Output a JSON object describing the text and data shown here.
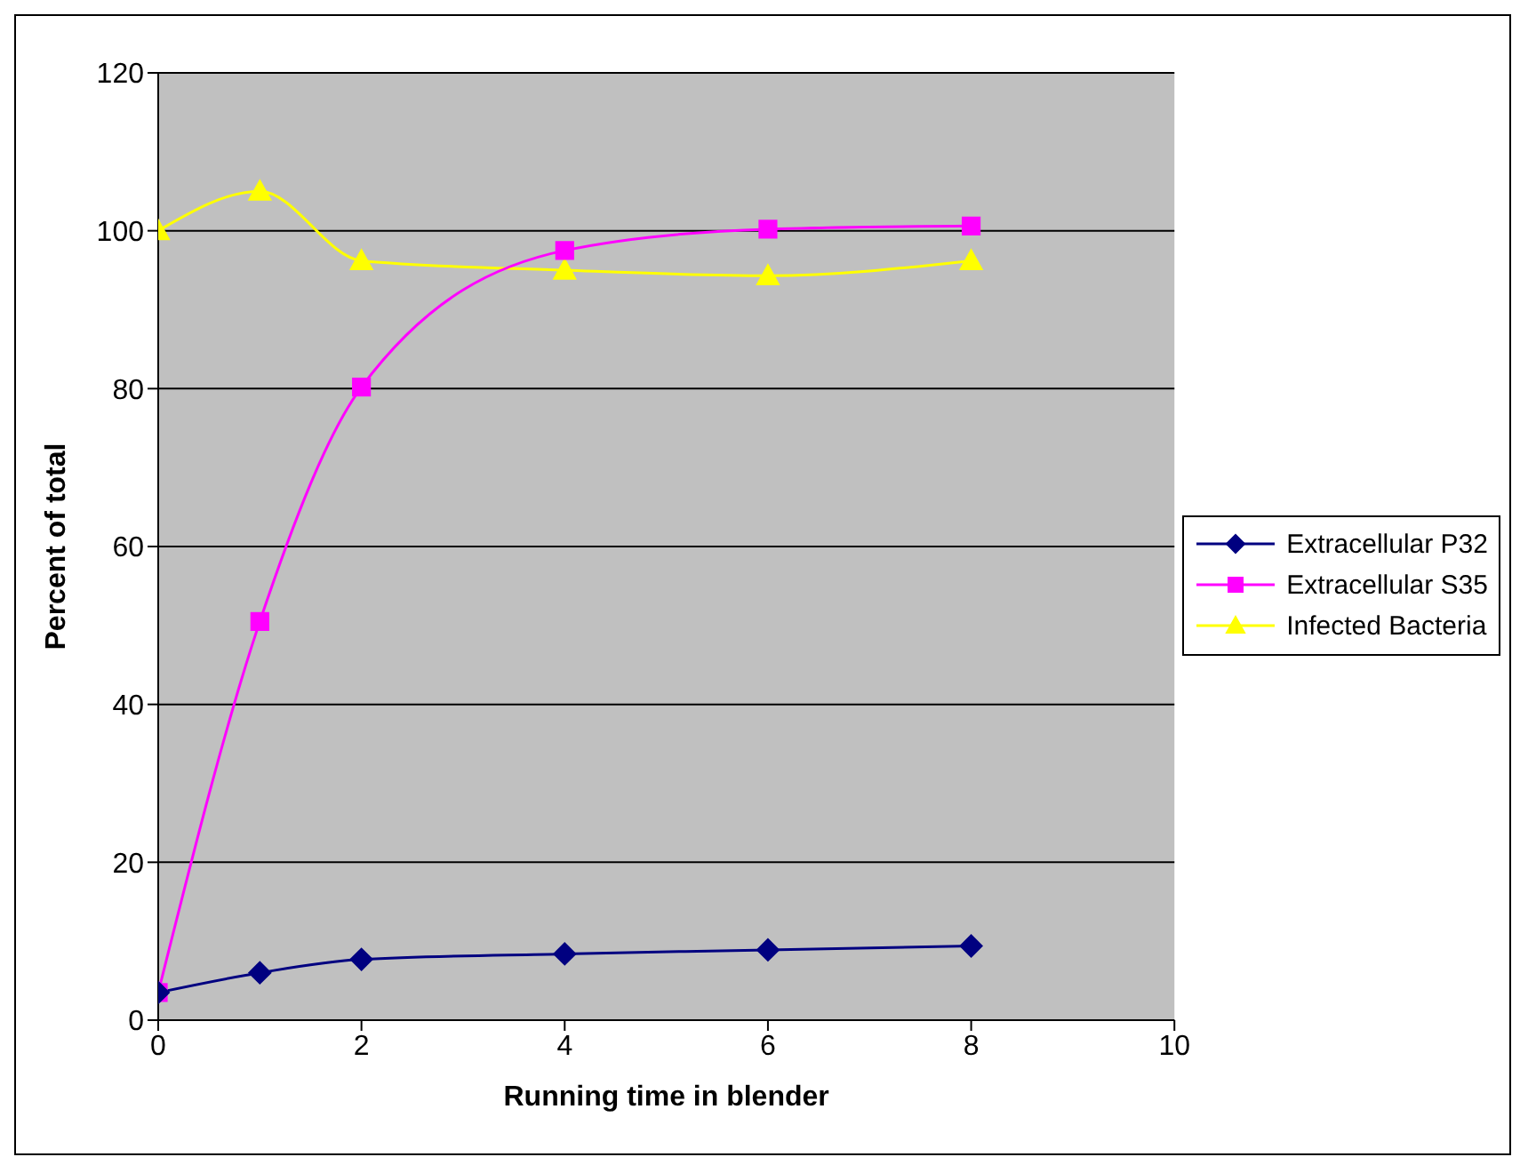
{
  "chart_data": {
    "type": "line",
    "xlabel": "Running time in blender",
    "ylabel": "Percent of total",
    "x": [
      0,
      1,
      2,
      4,
      6,
      8
    ],
    "xlim": [
      0,
      10
    ],
    "xticks": [
      0,
      2,
      4,
      6,
      8,
      10
    ],
    "ylim": [
      0,
      120
    ],
    "yticks": [
      0,
      20,
      40,
      60,
      80,
      100,
      120
    ],
    "grid": "y",
    "legend": "right",
    "series": [
      {
        "name": "Extracellular P32",
        "color": "#000080",
        "marker": "diamond",
        "values": [
          3.5,
          6,
          7.7,
          8.4,
          8.9,
          9.4
        ]
      },
      {
        "name": "Extracellular S35",
        "color": "#ff00ff",
        "marker": "square",
        "values": [
          3.5,
          50.5,
          80.2,
          97.5,
          100.2,
          100.6
        ]
      },
      {
        "name": "Infected Bacteria",
        "color": "#ffff00",
        "marker": "triangle",
        "values": [
          100,
          105,
          96.2,
          95,
          94.3,
          96.2
        ]
      }
    ]
  }
}
